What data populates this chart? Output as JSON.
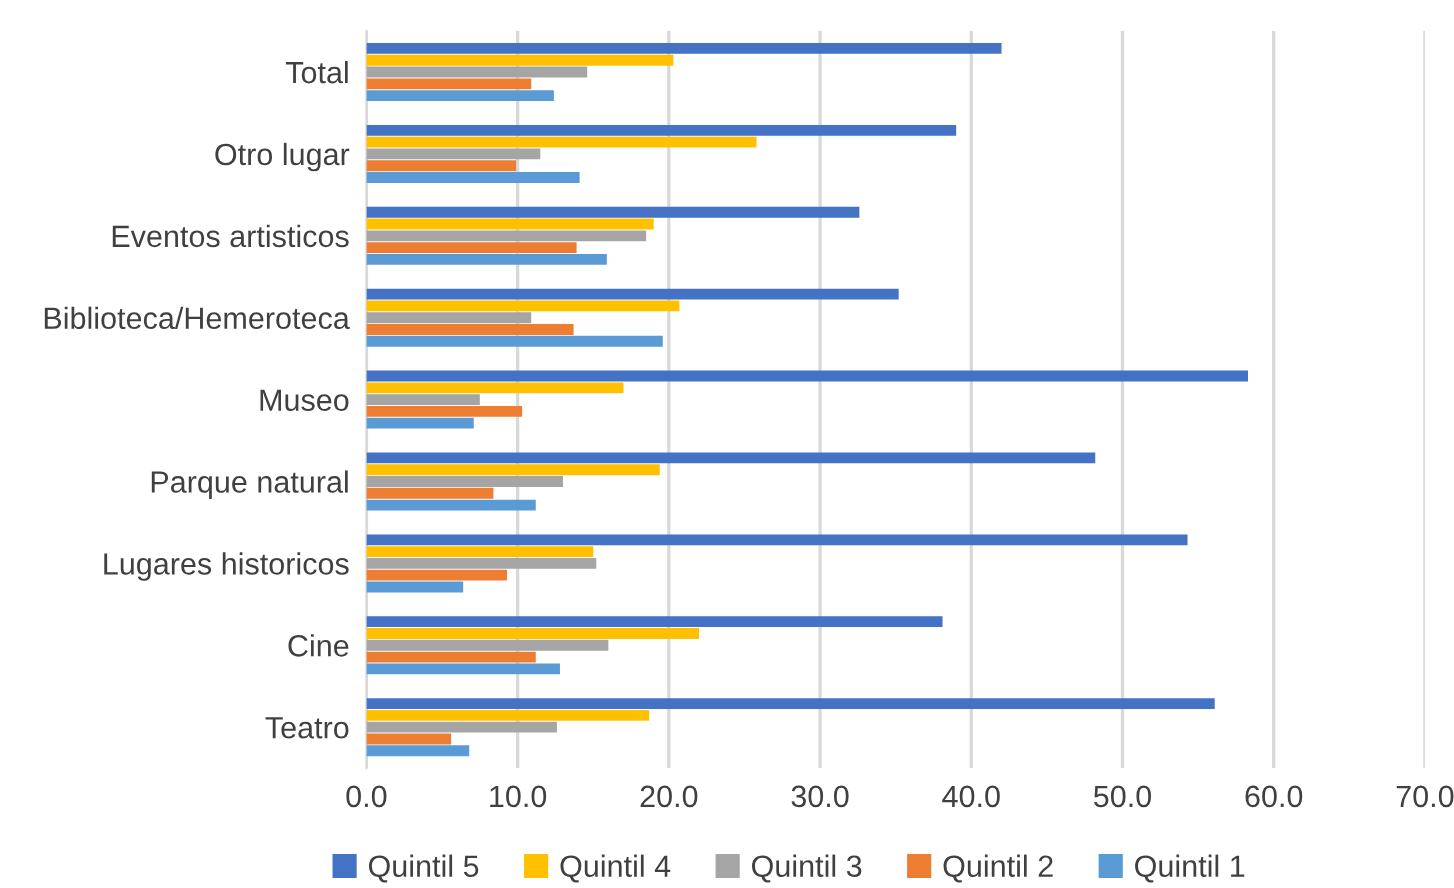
{
  "chart_data": {
    "type": "bar",
    "orientation": "horizontal",
    "categories": [
      "Total",
      "Otro lugar",
      "Eventos artisticos",
      "Biblioteca/Hemeroteca",
      "Museo",
      "Parque natural",
      "Lugares historicos",
      "Cine",
      "Teatro"
    ],
    "series": [
      {
        "name": "Quintil 5",
        "color": "#4472c4",
        "values": [
          42.0,
          39.0,
          32.6,
          35.2,
          58.3,
          48.2,
          54.3,
          38.1,
          56.1
        ]
      },
      {
        "name": "Quintil 4",
        "color": "#ffc000",
        "values": [
          20.3,
          25.8,
          19.0,
          20.7,
          17.0,
          19.4,
          15.0,
          22.0,
          18.7
        ]
      },
      {
        "name": "Quintil 3",
        "color": "#a5a5a5",
        "values": [
          14.6,
          11.5,
          18.5,
          10.9,
          7.5,
          13.0,
          15.2,
          16.0,
          12.6
        ]
      },
      {
        "name": "Quintil 2",
        "color": "#ed7d31",
        "values": [
          10.9,
          9.9,
          13.9,
          13.7,
          10.3,
          8.4,
          9.3,
          11.2,
          5.6
        ]
      },
      {
        "name": "Quintil 1",
        "color": "#5b9bd5",
        "values": [
          12.4,
          14.1,
          15.9,
          19.6,
          7.1,
          11.2,
          6.4,
          12.8,
          6.8
        ]
      }
    ],
    "xlim": [
      0,
      70
    ],
    "xticks": [
      {
        "value": 0,
        "label": "0.0"
      },
      {
        "value": 10,
        "label": "10.0"
      },
      {
        "value": 20,
        "label": "20.0"
      },
      {
        "value": 30,
        "label": "30.0"
      },
      {
        "value": 40,
        "label": "40.0"
      },
      {
        "value": 50,
        "label": "50.0"
      },
      {
        "value": 60,
        "label": "60.0"
      },
      {
        "value": 70,
        "label": "70.0"
      }
    ],
    "grid": "x",
    "legend": "bottom"
  }
}
